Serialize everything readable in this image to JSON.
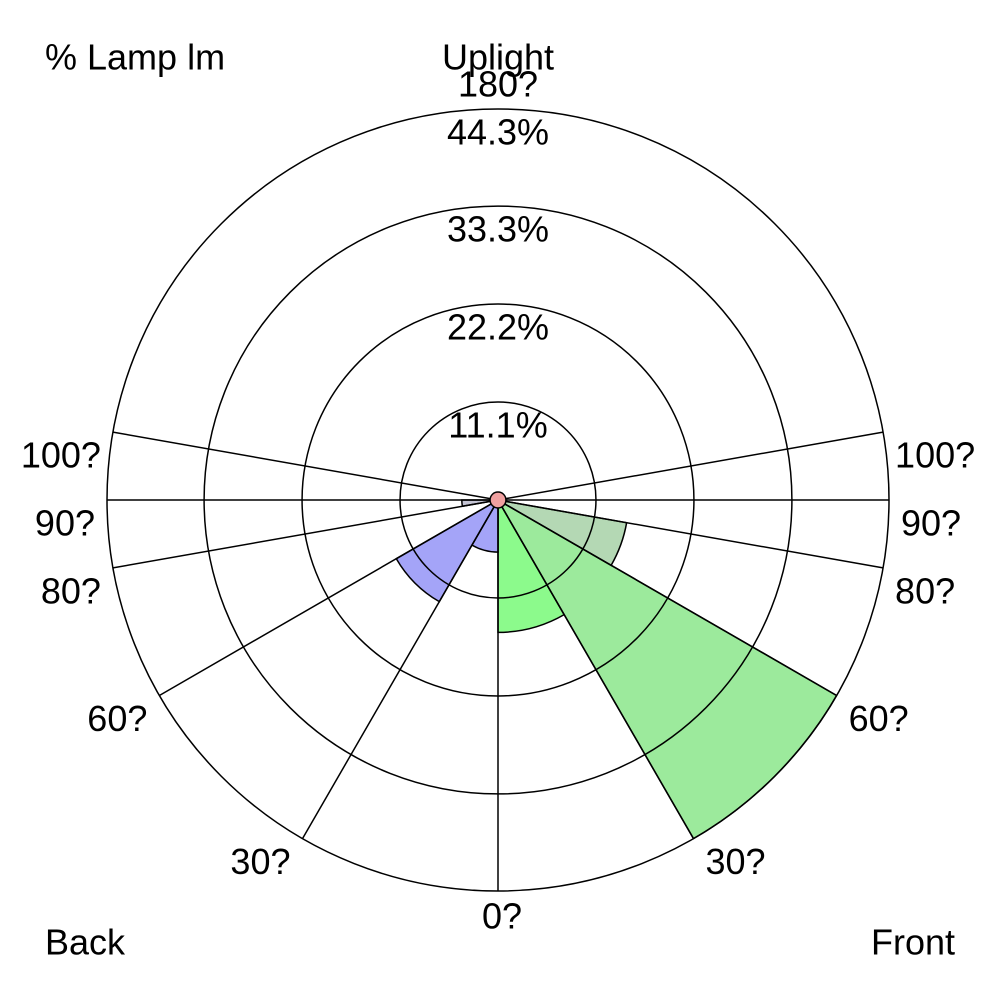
{
  "chart_data": {
    "type": "polar",
    "corner_label": "% Lamp lm",
    "uplight_label": "Uplight",
    "back_label": "Back",
    "front_label": "Front",
    "rlim": [
      0,
      44.3
    ],
    "rticks": [
      {
        "value": 11.1,
        "label": "11.1%"
      },
      {
        "value": 22.2,
        "label": "22.2%"
      },
      {
        "value": 33.3,
        "label": "33.3%"
      },
      {
        "value": 44.3,
        "label": "44.3%"
      }
    ],
    "angles": [
      {
        "value": 0,
        "label": "0?"
      },
      {
        "value": 30,
        "label": "30?"
      },
      {
        "value": 60,
        "label": "60?"
      },
      {
        "value": 80,
        "label": "80?"
      },
      {
        "value": 90,
        "label": "90?"
      },
      {
        "value": 100,
        "label": "100?"
      },
      {
        "value": 180,
        "label": "180?"
      }
    ],
    "wedges": [
      {
        "side": "front",
        "from": 0,
        "to": 30,
        "value": 15.0,
        "color": "#8cfa8c"
      },
      {
        "side": "front",
        "from": 30,
        "to": 60,
        "value": 44.3,
        "color": "#9cea9c"
      },
      {
        "side": "front",
        "from": 60,
        "to": 80,
        "value": 14.8,
        "color": "#b4d8b4"
      },
      {
        "side": "back",
        "from": 0,
        "to": 30,
        "value": 5.9,
        "color": "#a4a4f8"
      },
      {
        "side": "back",
        "from": 30,
        "to": 60,
        "value": 13.3,
        "color": "#a4a4f8"
      },
      {
        "side": "back",
        "from": 80,
        "to": 90,
        "value": 4.1,
        "color": "#c4c4d4"
      }
    ],
    "uplight": {
      "value": 0.9,
      "color": "#f0a0a0"
    }
  }
}
